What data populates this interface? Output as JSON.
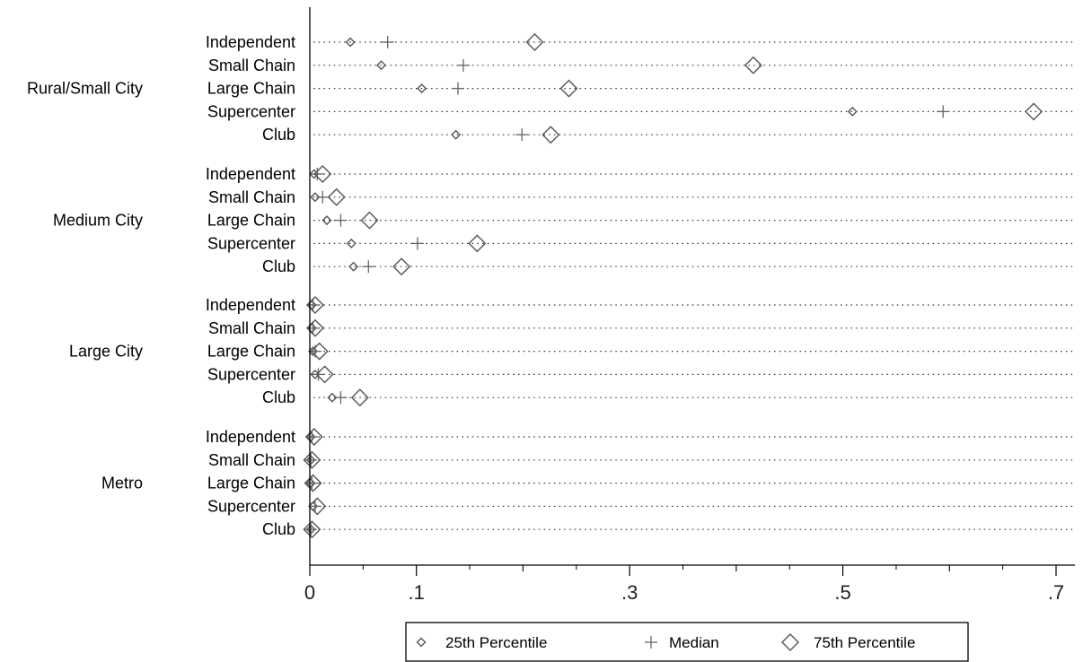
{
  "chart_data": {
    "type": "scatter",
    "orientation": "horizontal-dot-plot",
    "x_axis": {
      "range": [
        0,
        0.72
      ],
      "major_ticks": [
        0,
        0.1,
        0.3,
        0.5,
        0.7
      ],
      "tick_labels": [
        "0",
        ".1",
        ".3",
        ".5",
        ".7"
      ],
      "minor_ticks": [
        0.2,
        0.4,
        0.6
      ]
    },
    "grid": "dotted horizontal lines per row",
    "legend": {
      "placement": "bottom-center",
      "entries": [
        {
          "label": "25th Percentile",
          "marker": "small-diamond"
        },
        {
          "label": "Median",
          "marker": "plus"
        },
        {
          "label": "75th Percentile",
          "marker": "large-diamond"
        }
      ]
    },
    "series": [
      {
        "key": "p25",
        "marker": "small-diamond"
      },
      {
        "key": "median",
        "marker": "plus"
      },
      {
        "key": "p75",
        "marker": "large-diamond"
      }
    ],
    "groups": [
      {
        "name": "Rural/Small City",
        "rows": [
          {
            "label": "Independent",
            "p25": 0.038,
            "median": 0.073,
            "p75": 0.211
          },
          {
            "label": "Small Chain",
            "p25": 0.067,
            "median": 0.144,
            "p75": 0.416
          },
          {
            "label": "Large Chain",
            "p25": 0.105,
            "median": 0.139,
            "p75": 0.243
          },
          {
            "label": "Supercenter",
            "p25": 0.509,
            "median": 0.594,
            "p75": 0.679
          },
          {
            "label": "Club",
            "p25": 0.137,
            "median": 0.199,
            "p75": 0.226
          }
        ]
      },
      {
        "name": "Medium City",
        "rows": [
          {
            "label": "Independent",
            "p25": 0.004,
            "median": 0.007,
            "p75": 0.012
          },
          {
            "label": "Small Chain",
            "p25": 0.005,
            "median": 0.012,
            "p75": 0.025
          },
          {
            "label": "Large Chain",
            "p25": 0.016,
            "median": 0.029,
            "p75": 0.056
          },
          {
            "label": "Supercenter",
            "p25": 0.039,
            "median": 0.101,
            "p75": 0.157
          },
          {
            "label": "Club",
            "p25": 0.041,
            "median": 0.055,
            "p75": 0.086
          }
        ]
      },
      {
        "name": "Large City",
        "rows": [
          {
            "label": "Independent",
            "p25": 0.002,
            "median": 0.003,
            "p75": 0.005
          },
          {
            "label": "Small Chain",
            "p25": 0.002,
            "median": 0.003,
            "p75": 0.005
          },
          {
            "label": "Large Chain",
            "p25": 0.003,
            "median": 0.005,
            "p75": 0.009
          },
          {
            "label": "Supercenter",
            "p25": 0.005,
            "median": 0.008,
            "p75": 0.014
          },
          {
            "label": "Club",
            "p25": 0.021,
            "median": 0.029,
            "p75": 0.047
          }
        ]
      },
      {
        "name": "Metro",
        "rows": [
          {
            "label": "Independent",
            "p25": 0.001,
            "median": 0.002,
            "p75": 0.004
          },
          {
            "label": "Small Chain",
            "p25": 0.001,
            "median": 0.001,
            "p75": 0.002
          },
          {
            "label": "Large Chain",
            "p25": 0.001,
            "median": 0.002,
            "p75": 0.003
          },
          {
            "label": "Supercenter",
            "p25": 0.003,
            "median": 0.005,
            "p75": 0.007
          },
          {
            "label": "Club",
            "p25": 0.001,
            "median": 0.001,
            "p75": 0.002
          }
        ]
      }
    ]
  }
}
